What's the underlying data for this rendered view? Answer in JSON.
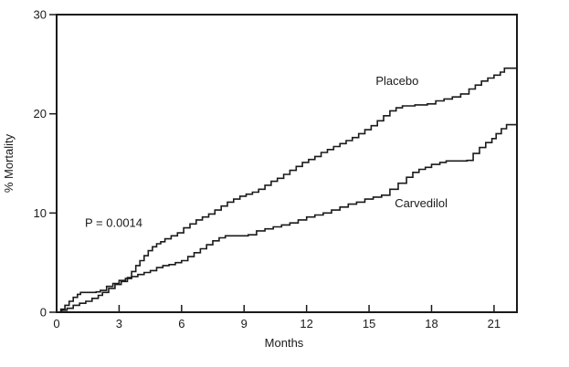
{
  "figure": {
    "ylabel": "% Mortality",
    "xlabel": "Months",
    "p_value": "P = 0.0014",
    "line_color": "#1a1a1a",
    "background": "#ffffff"
  },
  "chart_data": {
    "type": "line",
    "subtype": "step",
    "title": "",
    "xlabel": "Months",
    "ylabel": "% Mortality",
    "xlim": [
      0,
      22.1
    ],
    "ylim": [
      0,
      30
    ],
    "xticks": [
      0,
      3,
      6,
      9,
      12,
      15,
      18,
      21
    ],
    "yticks": [
      0,
      10,
      20,
      30
    ],
    "grid": false,
    "legend_position": "inline-annotations",
    "annotations": [
      {
        "text": "Placebo",
        "x": 16.35,
        "y": 22.9,
        "align": "middle"
      },
      {
        "text": "Carvedilol",
        "x": 17.5,
        "y": 10.6,
        "align": "middle"
      },
      {
        "text": "P = 0.0014",
        "x": 1.36,
        "y": 8.6,
        "align": "start"
      }
    ],
    "series": [
      {
        "name": "Placebo",
        "points": [
          [
            0,
            0
          ],
          [
            0.25,
            0.2
          ],
          [
            0.5,
            0.4
          ],
          [
            0.8,
            0.7
          ],
          [
            1.1,
            0.9
          ],
          [
            1.4,
            1.1
          ],
          [
            1.7,
            1.4
          ],
          [
            2.0,
            1.7
          ],
          [
            2.2,
            2.0
          ],
          [
            2.5,
            2.4
          ],
          [
            2.8,
            2.8
          ],
          [
            3.1,
            3.1
          ],
          [
            3.4,
            3.5
          ],
          [
            3.6,
            4.1
          ],
          [
            3.8,
            4.7
          ],
          [
            4.0,
            5.2
          ],
          [
            4.2,
            5.7
          ],
          [
            4.4,
            6.2
          ],
          [
            4.6,
            6.6
          ],
          [
            4.8,
            6.9
          ],
          [
            5.0,
            7.1
          ],
          [
            5.2,
            7.4
          ],
          [
            5.5,
            7.7
          ],
          [
            5.8,
            8.0
          ],
          [
            6.1,
            8.5
          ],
          [
            6.4,
            8.9
          ],
          [
            6.7,
            9.3
          ],
          [
            7.0,
            9.6
          ],
          [
            7.3,
            9.9
          ],
          [
            7.6,
            10.3
          ],
          [
            7.9,
            10.7
          ],
          [
            8.2,
            11.1
          ],
          [
            8.5,
            11.4
          ],
          [
            8.8,
            11.7
          ],
          [
            9.1,
            11.9
          ],
          [
            9.4,
            12.1
          ],
          [
            9.7,
            12.4
          ],
          [
            10.0,
            12.8
          ],
          [
            10.3,
            13.2
          ],
          [
            10.6,
            13.5
          ],
          [
            10.9,
            13.9
          ],
          [
            11.2,
            14.3
          ],
          [
            11.5,
            14.7
          ],
          [
            11.8,
            15.1
          ],
          [
            12.1,
            15.4
          ],
          [
            12.4,
            15.7
          ],
          [
            12.7,
            16.1
          ],
          [
            13.0,
            16.4
          ],
          [
            13.3,
            16.7
          ],
          [
            13.6,
            17.0
          ],
          [
            13.9,
            17.3
          ],
          [
            14.2,
            17.6
          ],
          [
            14.5,
            18.0
          ],
          [
            14.8,
            18.4
          ],
          [
            15.1,
            18.8
          ],
          [
            15.4,
            19.3
          ],
          [
            15.7,
            19.8
          ],
          [
            16.0,
            20.3
          ],
          [
            16.3,
            20.6
          ],
          [
            16.6,
            20.8
          ],
          [
            17.2,
            20.9
          ],
          [
            17.8,
            21.0
          ],
          [
            18.2,
            21.3
          ],
          [
            18.6,
            21.5
          ],
          [
            19.0,
            21.7
          ],
          [
            19.4,
            22.0
          ],
          [
            19.8,
            22.5
          ],
          [
            20.1,
            22.9
          ],
          [
            20.4,
            23.3
          ],
          [
            20.7,
            23.6
          ],
          [
            21.0,
            23.9
          ],
          [
            21.3,
            24.2
          ],
          [
            21.5,
            24.6
          ],
          [
            22.1,
            24.6
          ]
        ]
      },
      {
        "name": "Carvedilol",
        "points": [
          [
            0,
            0
          ],
          [
            0.2,
            0.3
          ],
          [
            0.4,
            0.7
          ],
          [
            0.6,
            1.1
          ],
          [
            0.8,
            1.5
          ],
          [
            1.0,
            1.8
          ],
          [
            1.15,
            2.0
          ],
          [
            1.9,
            2.05
          ],
          [
            2.1,
            2.2
          ],
          [
            2.4,
            2.6
          ],
          [
            2.7,
            2.9
          ],
          [
            3.0,
            3.2
          ],
          [
            3.3,
            3.4
          ],
          [
            3.6,
            3.6
          ],
          [
            3.9,
            3.8
          ],
          [
            4.2,
            4.0
          ],
          [
            4.5,
            4.2
          ],
          [
            4.8,
            4.5
          ],
          [
            5.1,
            4.7
          ],
          [
            5.4,
            4.8
          ],
          [
            5.7,
            5.0
          ],
          [
            6.0,
            5.2
          ],
          [
            6.3,
            5.6
          ],
          [
            6.6,
            6.0
          ],
          [
            6.9,
            6.4
          ],
          [
            7.2,
            6.8
          ],
          [
            7.5,
            7.2
          ],
          [
            7.8,
            7.5
          ],
          [
            8.1,
            7.7
          ],
          [
            9.2,
            7.8
          ],
          [
            9.6,
            8.2
          ],
          [
            10.0,
            8.4
          ],
          [
            10.4,
            8.6
          ],
          [
            10.8,
            8.8
          ],
          [
            11.2,
            9.0
          ],
          [
            11.6,
            9.3
          ],
          [
            12.0,
            9.6
          ],
          [
            12.4,
            9.8
          ],
          [
            12.8,
            10.0
          ],
          [
            13.2,
            10.3
          ],
          [
            13.6,
            10.6
          ],
          [
            14.0,
            10.9
          ],
          [
            14.4,
            11.1
          ],
          [
            14.8,
            11.4
          ],
          [
            15.2,
            11.6
          ],
          [
            15.6,
            11.8
          ],
          [
            16.0,
            12.4
          ],
          [
            16.4,
            13.0
          ],
          [
            16.8,
            13.6
          ],
          [
            17.1,
            14.1
          ],
          [
            17.4,
            14.4
          ],
          [
            17.7,
            14.6
          ],
          [
            18.0,
            14.9
          ],
          [
            18.4,
            15.1
          ],
          [
            18.7,
            15.25
          ],
          [
            19.7,
            15.3
          ],
          [
            20.0,
            16.0
          ],
          [
            20.3,
            16.6
          ],
          [
            20.6,
            17.1
          ],
          [
            20.9,
            17.5
          ],
          [
            21.1,
            18.0
          ],
          [
            21.35,
            18.5
          ],
          [
            21.6,
            18.9
          ],
          [
            22.1,
            18.9
          ]
        ]
      }
    ]
  }
}
